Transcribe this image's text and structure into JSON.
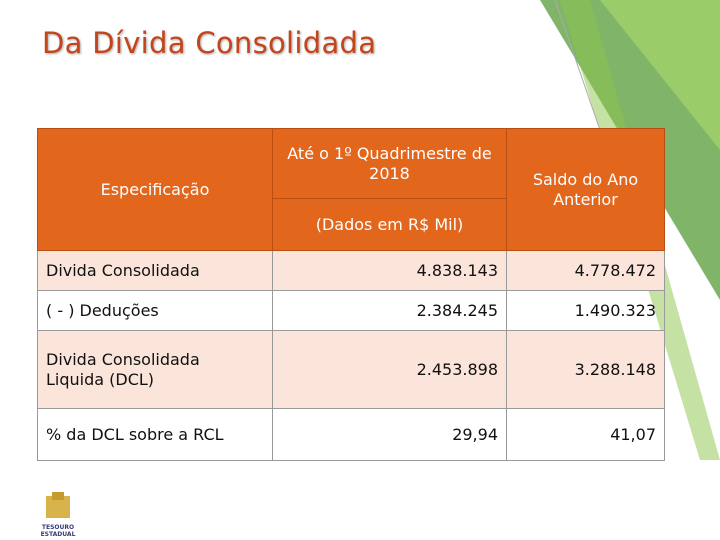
{
  "title": "Da Dívida Consolidada",
  "table": {
    "header": {
      "spec": "Especificação",
      "current": "Até o 1º Quadrimestre de 2018",
      "unit": "(Dados em R$ Mil)",
      "previous": "Saldo do Ano Anterior"
    },
    "rows": [
      [
        "Divida Consolidada",
        "4.838.143",
        "4.778.472"
      ],
      [
        "( - ) Deduções",
        "2.384.245",
        "1.490.323"
      ],
      [
        "Divida Consolidada Liquida (DCL)",
        "2.453.898",
        "3.288.148"
      ],
      [
        "% da DCL sobre a RCL",
        "29,94",
        "41,07"
      ]
    ]
  },
  "logo": {
    "text": "TESOURO ESTADUAL"
  }
}
